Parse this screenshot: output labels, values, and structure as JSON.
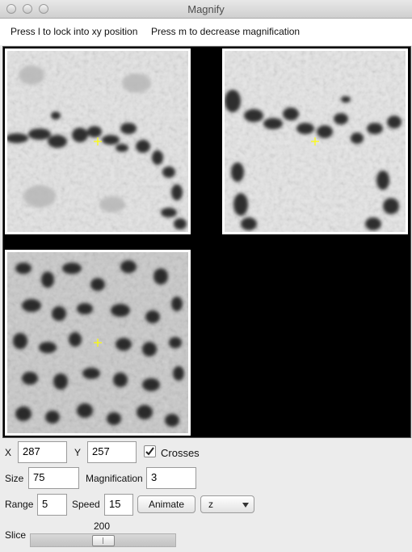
{
  "window": {
    "title": "Magnify"
  },
  "hints": {
    "lock": "Press l to lock into xy position",
    "magnification": "Press m to decrease magnification"
  },
  "controls": {
    "x_label": "X",
    "x_value": "287",
    "y_label": "Y",
    "y_value": "257",
    "crosses_label": "Crosses",
    "crosses_checked": true,
    "size_label": "Size",
    "size_value": "75",
    "magnification_label": "Magnification",
    "magnification_value": "3",
    "range_label": "Range",
    "range_value": "5",
    "speed_label": "Speed",
    "speed_value": "15",
    "animate_label": "Animate",
    "axis_selected": "z",
    "slice_label": "Slice",
    "slice_value": "200"
  },
  "colors": {
    "crosshair": "#ffff00",
    "viewport_bg": "#000000"
  }
}
